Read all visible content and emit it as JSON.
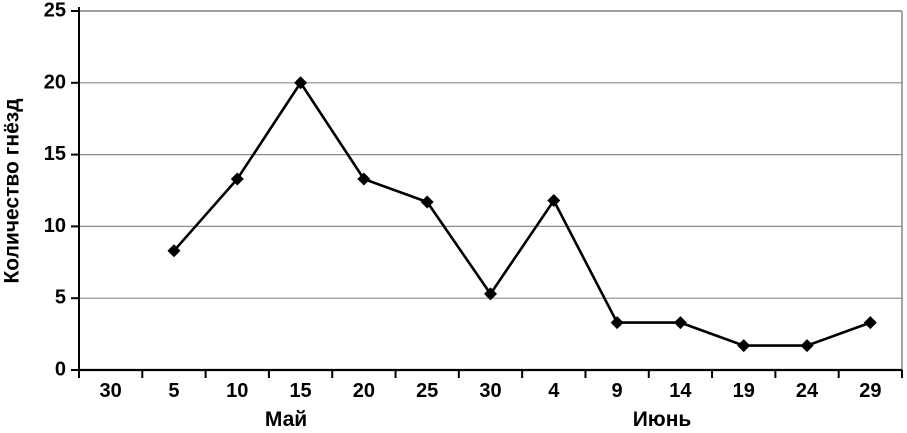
{
  "chart_data": {
    "type": "line",
    "title": "",
    "xlabel": "",
    "ylabel": "Количество гнёзд",
    "ylim": [
      0,
      25
    ],
    "yticks": [
      0,
      5,
      10,
      15,
      20,
      25
    ],
    "grid": true,
    "legend": false,
    "marker": "diamond",
    "colors": {
      "line": "#000000",
      "marker": "#000000",
      "gridline": "#8c8c8c",
      "axis": "#000000",
      "plot_border": "#808080",
      "text": "#000000",
      "background": "#ffffff"
    },
    "categories": [
      "30",
      "5",
      "10",
      "15",
      "20",
      "25",
      "30",
      "4",
      "9",
      "14",
      "19",
      "24",
      "29"
    ],
    "month_groups": [
      {
        "label": "Май",
        "start_index": 1,
        "end_index": 6
      },
      {
        "label": "Июнь",
        "start_index": 7,
        "end_index": 12
      }
    ],
    "series": [
      {
        "name": "Количество гнёзд",
        "values": [
          null,
          8.3,
          13.3,
          20,
          13.3,
          11.7,
          5.3,
          11.8,
          3.3,
          3.3,
          1.7,
          1.7,
          3.3
        ]
      }
    ]
  }
}
